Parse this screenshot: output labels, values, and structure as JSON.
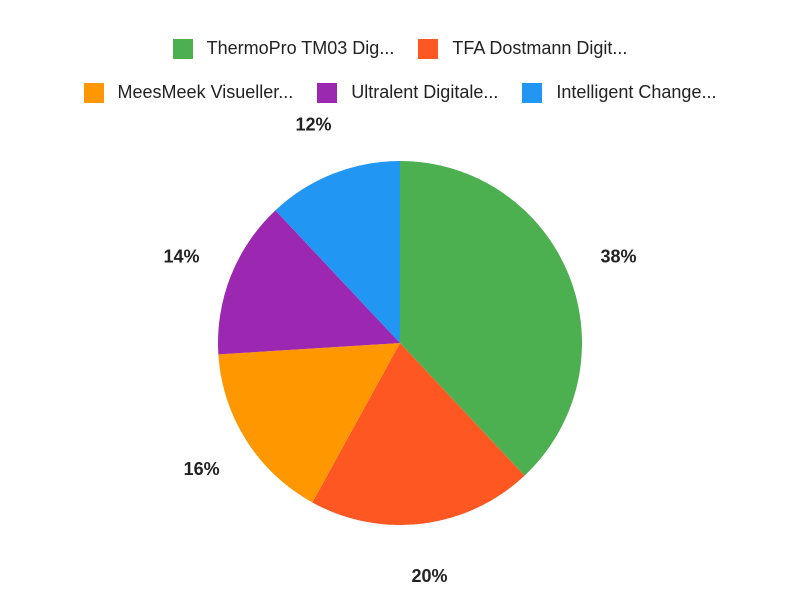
{
  "chart_data": {
    "type": "pie",
    "legend_position": "top",
    "slices": [
      {
        "label": "ThermoPro TM03 Dig...",
        "value": 38,
        "value_label": "38%",
        "color": "#4caf50"
      },
      {
        "label": "TFA Dostmann Digit...",
        "value": 20,
        "value_label": "20%",
        "color": "#ff5722"
      },
      {
        "label": "MeesMeek Visueller...",
        "value": 16,
        "value_label": "16%",
        "color": "#ff9800"
      },
      {
        "label": "Ultralent Digitale...",
        "value": 14,
        "value_label": "14%",
        "color": "#9c27b0"
      },
      {
        "label": "Intelligent Change...",
        "value": 12,
        "value_label": "12%",
        "color": "#2196f3"
      }
    ]
  }
}
